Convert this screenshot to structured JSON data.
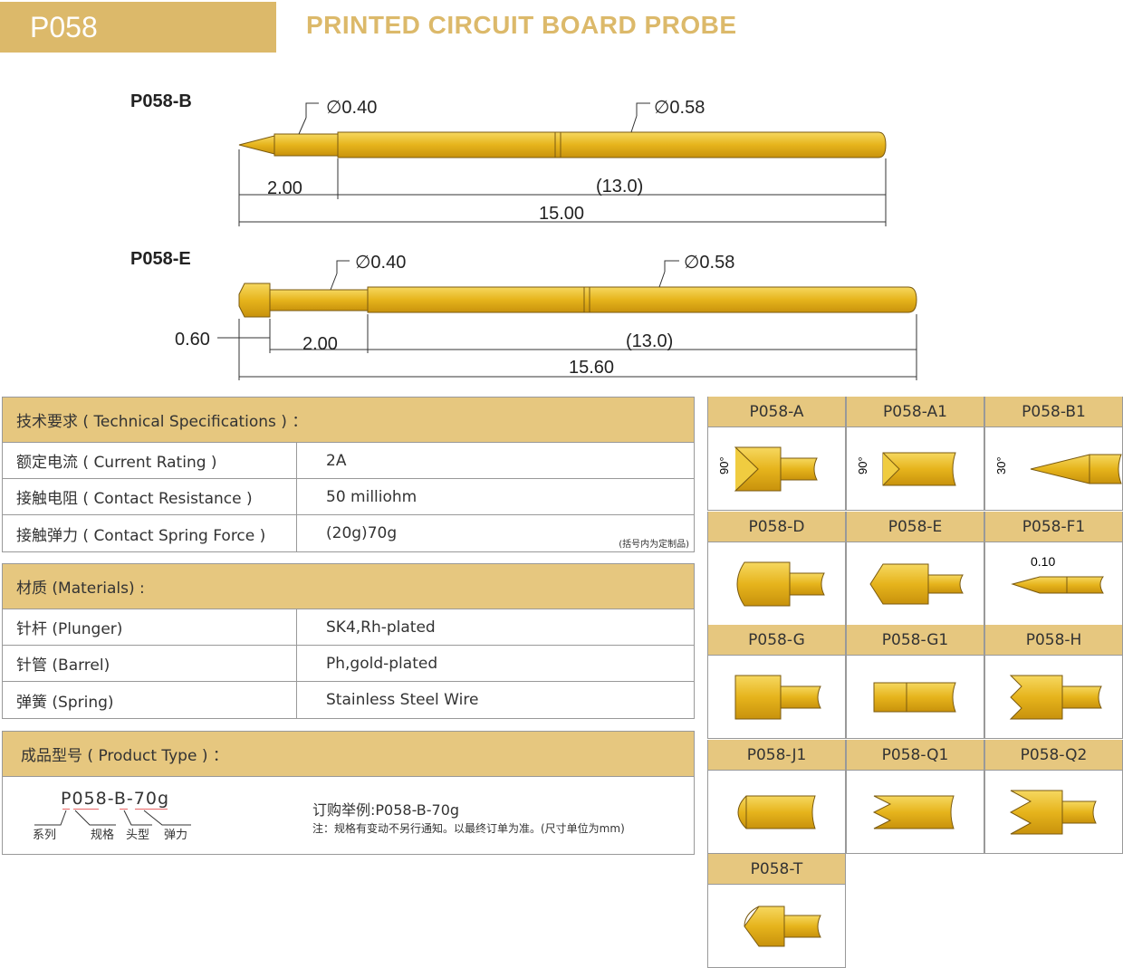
{
  "header": {
    "code": "P058",
    "title": "PRINTED CIRCUIT BOARD  PROBE"
  },
  "colors": {
    "brand_gold": "#dcb96a",
    "section_tan": "#e6c77f",
    "probe_gold": "#e8b820"
  },
  "drawings": [
    {
      "model": "P058-B",
      "tip_dia": "∅0.40",
      "barrel_dia": "∅0.58",
      "tip_len": "2.00",
      "barrel_len": "(13.0)",
      "total_len": "15.00"
    },
    {
      "model": "P058-E",
      "tip_dia": "∅0.40",
      "barrel_dia": "∅0.58",
      "head_len": "0.60",
      "tip_len": "2.00",
      "barrel_len": "(13.0)",
      "total_len": "15.60"
    }
  ],
  "tech": {
    "title": "技术要求 ( Technical Specifications ) ：",
    "rows": [
      {
        "label": "额定电流 ( Current Rating )",
        "value": "2A"
      },
      {
        "label": "接触电阻 ( Contact Resistance )",
        "value": "50 milliohm"
      },
      {
        "label": "接触弹力 ( Contact Spring Force )",
        "value": "(20g)70g",
        "note": "(括号内为定制品)"
      }
    ]
  },
  "materials": {
    "title": "材质 (Materials) :",
    "rows": [
      {
        "label": "针杆 (Plunger)",
        "value": "SK4,Rh-plated"
      },
      {
        "label": "针管 (Barrel)",
        "value": "Ph,gold-plated"
      },
      {
        "label": "弹簧 (Spring)",
        "value": "Stainless Steel Wire"
      }
    ]
  },
  "product_type": {
    "title": "成品型号 ( Product Type ) ：",
    "code": "P058-B-70g",
    "parts": [
      "系列",
      "规格",
      "头型",
      "弹力"
    ],
    "example": "订购举例:P058-B-70g",
    "note": "注：规格有变动不另行通知。以最终订单为准。(尺寸单位为mm)"
  },
  "tips": [
    {
      "name": "P058-A",
      "angle": "90°"
    },
    {
      "name": "P058-A1",
      "angle": "90°"
    },
    {
      "name": "P058-B1",
      "angle": "30°"
    },
    {
      "name": "P058-D"
    },
    {
      "name": "P058-E"
    },
    {
      "name": "P058-F1",
      "dim": "0.10"
    },
    {
      "name": "P058-G"
    },
    {
      "name": "P058-G1"
    },
    {
      "name": "P058-H"
    },
    {
      "name": "P058-J1"
    },
    {
      "name": "P058-Q1"
    },
    {
      "name": "P058-Q2"
    },
    {
      "name": "P058-T"
    }
  ]
}
